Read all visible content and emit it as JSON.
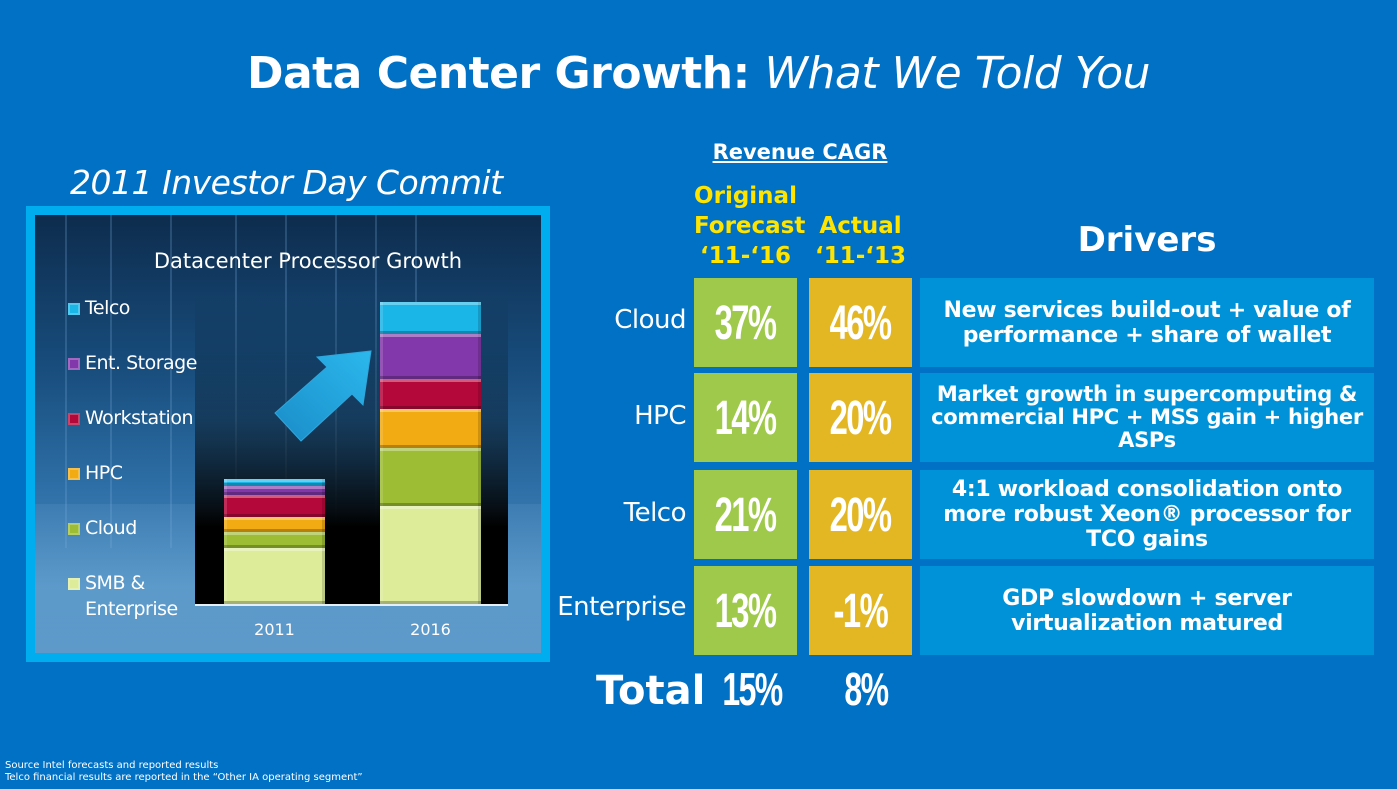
{
  "slide": {
    "title_bold": "Data Center Growth:",
    "title_italic": "What We Told You",
    "left_subtitle": "2011 Investor Day Commit"
  },
  "colors": {
    "background": "#0071c5",
    "frame": "#00aeef",
    "forecast_box": "#9ec94a",
    "actual_box": "#e3b724",
    "driver_box": "#0092d8",
    "column_header": "#ffe400"
  },
  "chart_data": {
    "type": "bar",
    "stacked": true,
    "title": "Datacenter Processor Growth",
    "xlabel": "",
    "ylabel": "",
    "units": "relative (2016 total = 100), estimated from bar heights",
    "categories": [
      "2011",
      "2016"
    ],
    "legend_position": "left",
    "grid": false,
    "series": [
      {
        "name": "SMB & Enterprise",
        "color": "#dcec98",
        "values": [
          18.5,
          32.5
        ]
      },
      {
        "name": "Cloud",
        "color": "#9dbe34",
        "values": [
          5.3,
          19.2
        ]
      },
      {
        "name": "HPC",
        "color": "#f2ab12",
        "values": [
          5.0,
          12.9
        ]
      },
      {
        "name": "Workstation",
        "color": "#b5083a",
        "values": [
          7.3,
          9.9
        ]
      },
      {
        "name": "Ent. Storage",
        "color": "#8238ab",
        "values": [
          3.0,
          14.9
        ]
      },
      {
        "name": "Telco",
        "color": "#1ab6e8",
        "values": [
          2.3,
          10.6
        ]
      }
    ],
    "legend_order": [
      "Telco",
      "Ent. Storage",
      "Workstation",
      "HPC",
      "Cloud",
      "SMB & Enterprise"
    ],
    "ylim": [
      0,
      100
    ],
    "annotation": "growth arrow"
  },
  "table": {
    "header": "Revenue CAGR",
    "col_forecast": [
      "Original",
      "Forecast",
      "‘11-‘16"
    ],
    "col_actual": [
      "Actual",
      "‘11-‘13"
    ],
    "drivers_heading": "Drivers",
    "rows": [
      {
        "label": "Cloud",
        "forecast": "37%",
        "actual": "46%",
        "driver": "New services build-out + value of performance + share of wallet"
      },
      {
        "label": "HPC",
        "forecast": "14%",
        "actual": "20%",
        "driver": "Market growth in supercomputing & commercial HPC + MSS gain + higher ASPs"
      },
      {
        "label": "Telco",
        "forecast": "21%",
        "actual": "20%",
        "driver": "4:1 workload consolidation onto more robust Xeon® processor for TCO gains"
      },
      {
        "label": "Enterprise",
        "forecast": "13%",
        "actual": "-1%",
        "driver": "GDP slowdown + server virtualization matured"
      }
    ],
    "total": {
      "label": "Total",
      "forecast": "15%",
      "actual": "8%"
    }
  },
  "footnote": [
    "Source Intel forecasts and reported results",
    "Telco financial results are reported in the “Other IA operating segment”"
  ]
}
